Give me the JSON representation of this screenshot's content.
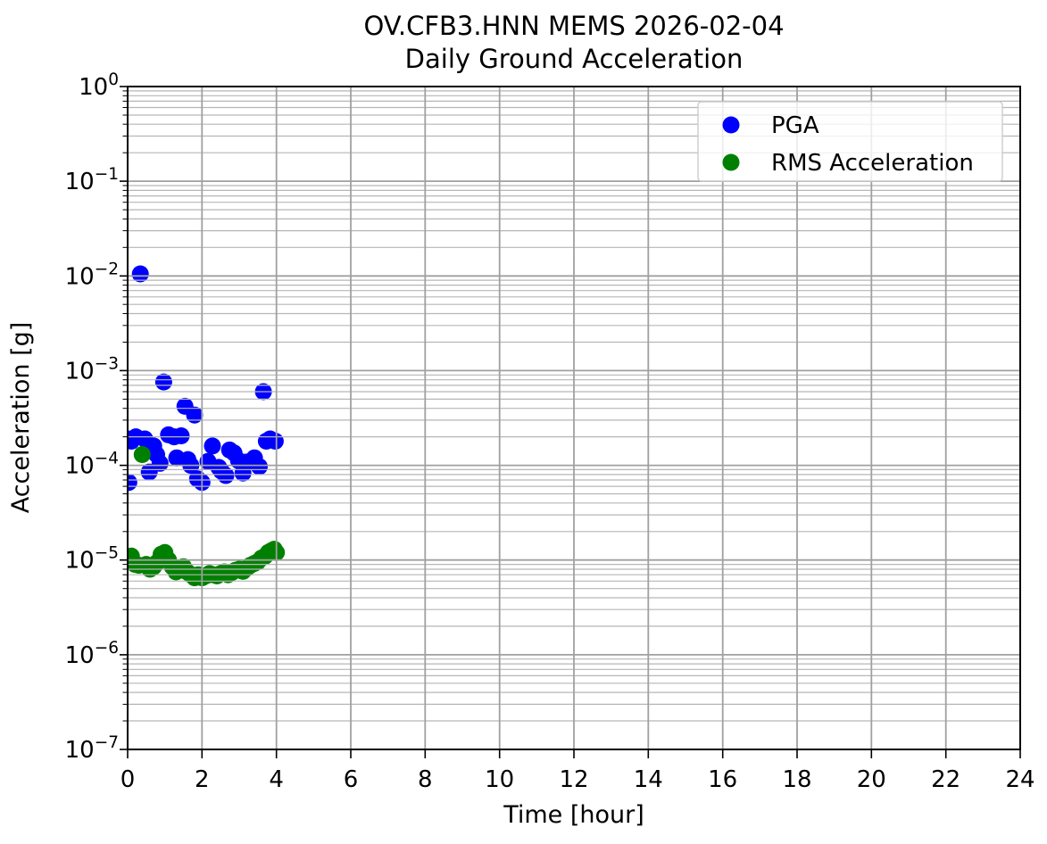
{
  "chart_data": {
    "type": "scatter",
    "title_lines": [
      "OV.CFB3.HNN MEMS 2026-02-04",
      "Daily Ground Acceleration"
    ],
    "xlabel": "Time [hour]",
    "ylabel": "Acceleration [g]",
    "xlim": [
      0,
      24
    ],
    "ylim": [
      1e-07,
      1
    ],
    "x_ticks": [
      0,
      2,
      4,
      6,
      8,
      10,
      12,
      14,
      16,
      18,
      20,
      22,
      24
    ],
    "y_tick_exponents": [
      0,
      -1,
      -2,
      -3,
      -4,
      -5,
      -6,
      -7
    ],
    "y_scale": "log",
    "grid": {
      "horizontal": "major+minor",
      "vertical": "major",
      "major_color": "#a0a0a0",
      "minor_color": "#b6b6b6",
      "grid_above_points": true
    },
    "marker": {
      "shape": "circle",
      "radius_px": 9.5
    },
    "legend": {
      "position": "upper right",
      "entries": [
        {
          "label": "PGA",
          "color": "#0000ff"
        },
        {
          "label": "RMS Acceleration",
          "color": "#008000"
        }
      ]
    },
    "series": [
      {
        "name": "PGA",
        "color": "#0000ff",
        "x": [
          0.0,
          0.03,
          0.1,
          0.22,
          0.34,
          0.46,
          0.58,
          0.7,
          0.78,
          0.87,
          0.97,
          1.1,
          1.25,
          1.32,
          1.44,
          1.54,
          1.62,
          1.7,
          1.8,
          1.88,
          2.0,
          2.16,
          2.28,
          2.45,
          2.52,
          2.64,
          2.74,
          2.86,
          2.98,
          3.1,
          3.18,
          3.29,
          3.41,
          3.54,
          3.65,
          3.73,
          3.83,
          3.97
        ],
        "y": [
          0.00019,
          6.6e-05,
          0.00018,
          0.0002,
          0.0105,
          0.00019,
          8.5e-05,
          0.00016,
          0.00013,
          0.000105,
          0.00076,
          0.00021,
          0.0002,
          0.00012,
          0.000205,
          0.00042,
          0.000115,
          0.0001,
          0.00034,
          7.2e-05,
          6.6e-05,
          0.00011,
          0.00016,
          9.5e-05,
          8.7e-05,
          7.8e-05,
          0.000145,
          0.000135,
          0.000112,
          8.3e-05,
          0.000108,
          0.00011,
          0.00012,
          9.7e-05,
          0.0006,
          0.00018,
          0.00019,
          0.00018
        ]
      },
      {
        "name": "RMS Acceleration",
        "color": "#008000",
        "x": [
          0.0,
          0.1,
          0.2,
          0.3,
          0.39,
          0.5,
          0.6,
          0.7,
          0.8,
          0.9,
          1.0,
          1.1,
          1.2,
          1.3,
          1.4,
          1.5,
          1.6,
          1.7,
          1.8,
          1.9,
          2.0,
          2.1,
          2.2,
          2.3,
          2.4,
          2.5,
          2.6,
          2.7,
          2.8,
          2.9,
          3.0,
          3.1,
          3.2,
          3.3,
          3.4,
          3.5,
          3.6,
          3.7,
          3.78,
          3.86,
          3.94,
          4.0
        ],
        "y": [
          1e-05,
          1.1e-05,
          9e-06,
          8.8e-06,
          0.00013,
          9e-06,
          8e-06,
          8.5e-06,
          9.5e-06,
          1.15e-05,
          1.2e-05,
          1e-05,
          8.5e-06,
          7.5e-06,
          8e-06,
          8.5e-06,
          7.5e-06,
          7e-06,
          6.5e-06,
          7e-06,
          6.5e-06,
          6.8e-06,
          7.2e-06,
          7e-06,
          6.8e-06,
          7.2e-06,
          7.5e-06,
          7e-06,
          7.4e-06,
          7.8e-06,
          8e-06,
          7.6e-06,
          8.2e-06,
          8.8e-06,
          9.2e-06,
          9.6e-06,
          1.05e-05,
          1.1e-05,
          1.2e-05,
          1.25e-05,
          1.3e-05,
          1.2e-05
        ]
      }
    ]
  }
}
